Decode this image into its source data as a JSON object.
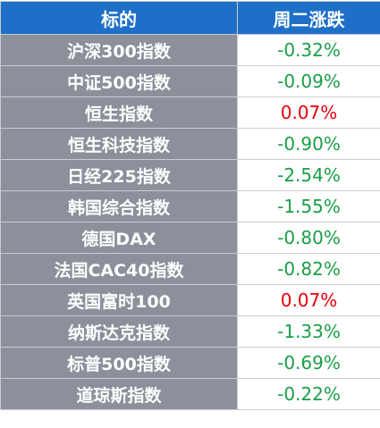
{
  "table": {
    "header": [
      "标的",
      "周二涨跌"
    ],
    "rows": [
      {
        "name": "沪深300指数",
        "change": "-0.32%",
        "color": "#1a9e47"
      },
      {
        "name": "中证500指数",
        "change": "-0.09%",
        "color": "#1a9e47"
      },
      {
        "name": "恒生指数",
        "change": "0.07%",
        "color": "#e8000b"
      },
      {
        "name": "恒生科技指数",
        "change": "-0.90%",
        "color": "#1a9e47"
      },
      {
        "name": "日经225指数",
        "change": "-2.54%",
        "color": "#1a9e47"
      },
      {
        "name": "韩国综合指数",
        "change": "-1.55%",
        "color": "#1a9e47"
      },
      {
        "name": "德国DAX",
        "change": "-0.80%",
        "color": "#1a9e47"
      },
      {
        "name": "法国CAC40指数",
        "change": "-0.82%",
        "color": "#1a9e47"
      },
      {
        "name": "英国富时100",
        "change": "0.07%",
        "color": "#e8000b"
      },
      {
        "name": "纳斯达克指数",
        "change": "-1.33%",
        "color": "#1a9e47"
      },
      {
        "name": "标普500指数",
        "change": "-0.69%",
        "color": "#1a9e47"
      },
      {
        "name": "道琼斯指数",
        "change": "-0.22%",
        "color": "#1a9e47"
      }
    ]
  }
}
